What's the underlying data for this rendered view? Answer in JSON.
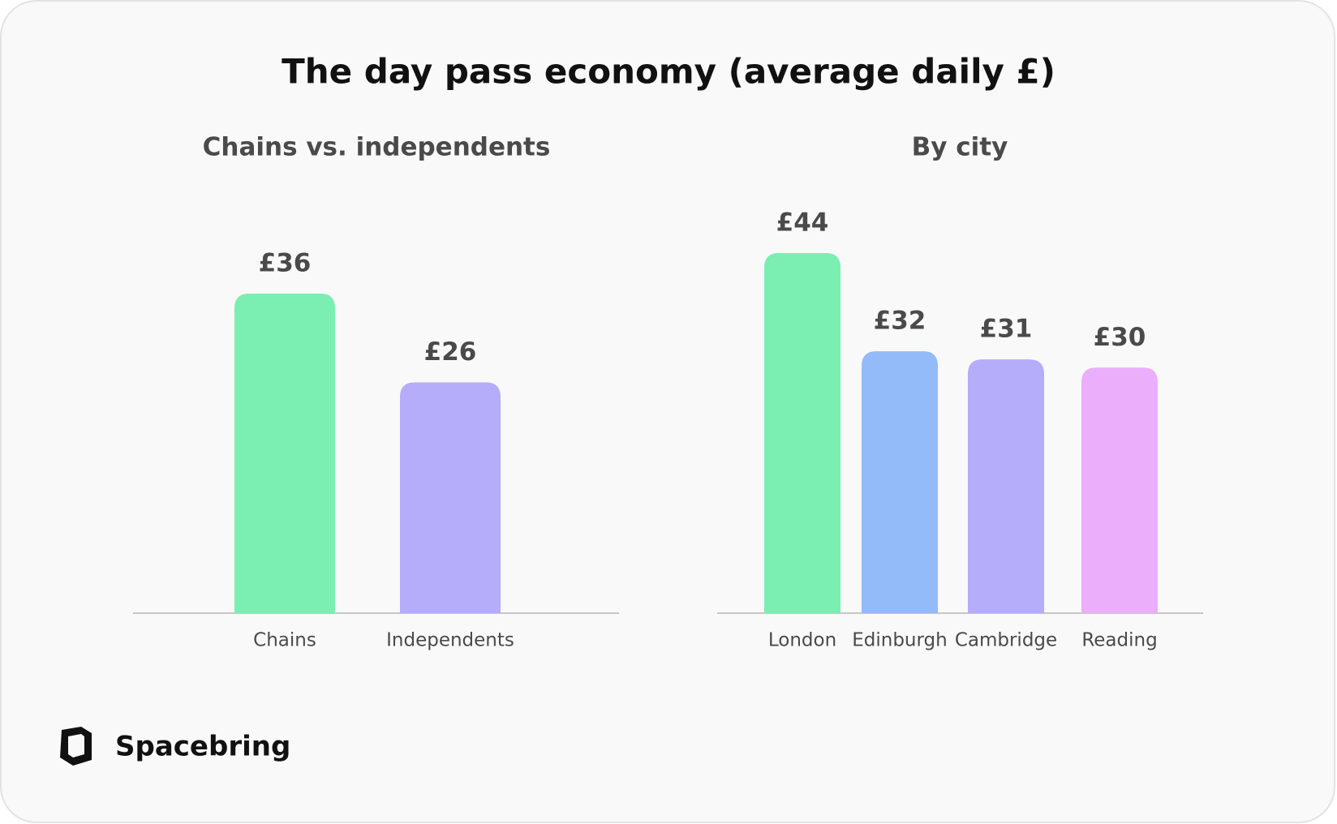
{
  "title": "The day pass economy (average daily £)",
  "brand": "Spacebring",
  "chart_data": [
    {
      "type": "bar",
      "title": "Chains vs. independents",
      "categories": [
        "Chains",
        "Independents"
      ],
      "values": [
        36,
        26
      ],
      "value_labels": [
        "£36",
        "£26"
      ],
      "colors": [
        "#7beeb1",
        "#b5adf9"
      ]
    },
    {
      "type": "bar",
      "title": "By city",
      "categories": [
        "London",
        "Edinburgh",
        "Cambridge",
        "Reading"
      ],
      "values": [
        44,
        32,
        31,
        30
      ],
      "value_labels": [
        "£44",
        "£32",
        "£31",
        "£30"
      ],
      "colors": [
        "#7beeb1",
        "#93bbf9",
        "#b5adf9",
        "#ebaefb"
      ]
    }
  ]
}
